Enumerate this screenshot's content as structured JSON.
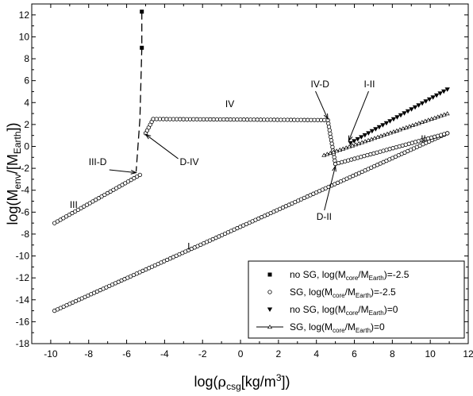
{
  "chart_data": {
    "type": "scatter",
    "title": "",
    "xlabel_parts": {
      "pre": "log(",
      "symbol": "ρ",
      "sub": "csg",
      "post": "[kg/m",
      "sup": "3",
      "end": "])"
    },
    "ylabel_parts": {
      "pre": "log(M",
      "sub1": "env",
      "mid": "/[M",
      "sub2": "Earth",
      "post": "])"
    },
    "xlim": [
      -11,
      12
    ],
    "ylim": [
      -18,
      13
    ],
    "xticks": [
      "-10",
      "-8",
      "-6",
      "-4",
      "-2",
      "0",
      "2",
      "4",
      "6",
      "8",
      "10",
      "12"
    ],
    "yticks": [
      "-18",
      "-16",
      "-14",
      "-12",
      "-10",
      "-8",
      "-6",
      "-4",
      "-2",
      "0",
      "2",
      "4",
      "6",
      "8",
      "10",
      "12"
    ],
    "series": [
      {
        "marker": "square",
        "line": "dashed",
        "points": [
          [
            -5.2,
            12.3
          ],
          [
            -5.2,
            9.0
          ],
          [
            -5.3,
            2.5
          ],
          [
            -5.5,
            -2.3
          ]
        ]
      },
      {
        "marker": "circle",
        "line": "none",
        "segments": [
          {
            "from": [
              -9.8,
              -15.0
            ],
            "to": [
              10.9,
              1.2
            ]
          },
          {
            "from": [
              -9.8,
              -7.0
            ],
            "to": [
              -5.3,
              -2.6
            ]
          },
          {
            "from": [
              -5.0,
              1.2
            ],
            "to": [
              -4.6,
              2.5
            ]
          },
          {
            "from": [
              -4.6,
              2.5
            ],
            "to": [
              4.6,
              2.4
            ]
          },
          {
            "from": [
              4.6,
              2.4
            ],
            "to": [
              5.0,
              -1.6
            ]
          },
          {
            "from": [
              5.0,
              -1.6
            ],
            "to": [
              10.9,
              1.2
            ]
          }
        ]
      },
      {
        "marker": "triangle-down",
        "line": "none",
        "segments": [
          {
            "from": [
              5.8,
              0.3
            ],
            "to": [
              10.9,
              5.2
            ]
          }
        ]
      },
      {
        "marker": "open-triangle",
        "line": "solid",
        "segments": [
          {
            "from": [
              4.4,
              -0.8
            ],
            "to": [
              10.9,
              3.0
            ]
          }
        ]
      }
    ],
    "legend": {
      "placement": "bottom-right",
      "entries": [
        {
          "prefix": "no SG, log(M",
          "sub1": "core",
          "mid": "/M",
          "sub2": "Earth",
          "suffix": ")=-2.5"
        },
        {
          "prefix": "SG, log(M",
          "sub1": "core",
          "mid": "/M",
          "sub2": "Earth",
          "suffix": ")=-2.5"
        },
        {
          "prefix": "no SG, log(M",
          "sub1": "core",
          "mid": "/M",
          "sub2": "Earth",
          "suffix": ")=0"
        },
        {
          "prefix": "SG, log(M",
          "sub1": "core",
          "mid": "/M",
          "sub2": "Earth",
          "suffix": ")=0"
        }
      ]
    },
    "annotations": [
      {
        "text": "I",
        "at": [
          -2.8,
          -9.4
        ]
      },
      {
        "text": "II",
        "at": [
          9.5,
          0.4
        ]
      },
      {
        "text": "III",
        "at": [
          -9.0,
          -5.6
        ]
      },
      {
        "text": "IV",
        "at": [
          -0.8,
          3.6
        ]
      },
      {
        "text": "III-D",
        "at": [
          -8.0,
          -1.7
        ],
        "arrow_to": [
          -5.5,
          -2.4
        ]
      },
      {
        "text": "D-IV",
        "at": [
          -3.2,
          -1.7
        ],
        "arrow_to": [
          -5.0,
          1.1
        ]
      },
      {
        "text": "IV-D",
        "at": [
          3.7,
          5.4
        ],
        "arrow_to": [
          4.6,
          2.5
        ]
      },
      {
        "text": "I-II",
        "at": [
          6.5,
          5.4
        ],
        "arrow_to": [
          5.7,
          0.5
        ]
      },
      {
        "text": "D-II",
        "at": [
          4.0,
          -6.7
        ],
        "arrow_to": [
          5.0,
          -1.8
        ]
      }
    ]
  }
}
